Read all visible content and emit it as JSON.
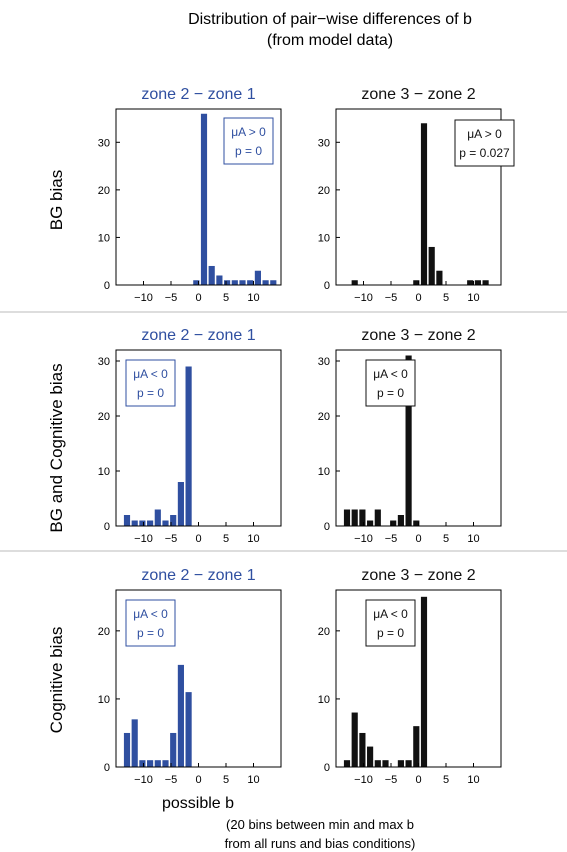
{
  "title_line1": "Distribution of pair−wise differences of b",
  "title_line2": "(from model data)",
  "xlabel": "possible b",
  "note_line1": "(20 bins between min and max b",
  "note_line2": "from all runs and bias conditions)",
  "colors": {
    "blue": "#2f4fa0",
    "black": "#111111",
    "separator": "#bbbbbb"
  },
  "chart_data": [
    {
      "type": "bar",
      "row": "BG bias",
      "title": "zone 2 − zone 1",
      "color": "blue",
      "x": [
        -13,
        -11.6,
        -10.2,
        -8.8,
        -7.4,
        -6,
        -4.6,
        -3.2,
        -1.8,
        -0.4,
        1,
        2.4,
        3.8,
        5.2,
        6.6,
        8,
        9.4,
        10.8,
        12.2,
        13.6
      ],
      "values": [
        0,
        0,
        0,
        0,
        0,
        0,
        0,
        0,
        0,
        1,
        36,
        4,
        2,
        1,
        1,
        1,
        1,
        3,
        1,
        1
      ],
      "xlim": [
        -15,
        15
      ],
      "ylim": [
        0,
        37
      ],
      "xticks": [
        -10,
        -5,
        0,
        5,
        10
      ],
      "xtick_labels": [
        "−10",
        "−5",
        "0",
        "5",
        "10"
      ],
      "yticks": [
        0,
        10,
        20,
        30
      ],
      "ytick_labels": [
        "0",
        "10",
        "20",
        "30"
      ],
      "stat_line1": "μA > 0",
      "stat_line2": "p = 0"
    },
    {
      "type": "bar",
      "row": "BG bias",
      "title": "zone 3 − zone 2",
      "color": "black",
      "x": [
        -13,
        -11.6,
        -10.2,
        -8.8,
        -7.4,
        -6,
        -4.6,
        -3.2,
        -1.8,
        -0.4,
        1,
        2.4,
        3.8,
        5.2,
        6.6,
        8,
        9.4,
        10.8,
        12.2,
        13.6
      ],
      "values": [
        0,
        1,
        0,
        0,
        0,
        0,
        0,
        0,
        0,
        1,
        34,
        8,
        3,
        0,
        0,
        0,
        1,
        1,
        1,
        0
      ],
      "xlim": [
        -15,
        15
      ],
      "ylim": [
        0,
        37
      ],
      "xticks": [
        -10,
        -5,
        0,
        5,
        10
      ],
      "xtick_labels": [
        "−10",
        "−5",
        "0",
        "5",
        "10"
      ],
      "yticks": [
        0,
        10,
        20,
        30
      ],
      "ytick_labels": [
        "0",
        "10",
        "20",
        "30"
      ],
      "stat_line1": "μA > 0",
      "stat_line2": "p = 0.027"
    },
    {
      "type": "bar",
      "row": "BG and Cognitive bias",
      "title": "zone 2 − zone 1",
      "color": "blue",
      "x": [
        -13,
        -11.6,
        -10.2,
        -8.8,
        -7.4,
        -6,
        -4.6,
        -3.2,
        -1.8,
        -0.4,
        1,
        2.4,
        3.8,
        5.2,
        6.6,
        8,
        9.4,
        10.8,
        12.2,
        13.6
      ],
      "values": [
        2,
        1,
        1,
        1,
        3,
        1,
        2,
        8,
        29,
        0,
        0,
        0,
        0,
        0,
        0,
        0,
        0,
        0,
        0,
        0
      ],
      "xlim": [
        -15,
        15
      ],
      "ylim": [
        0,
        32
      ],
      "xticks": [
        -10,
        -5,
        0,
        5,
        10
      ],
      "xtick_labels": [
        "−10",
        "−5",
        "0",
        "5",
        "10"
      ],
      "yticks": [
        0,
        10,
        20,
        30
      ],
      "ytick_labels": [
        "0",
        "10",
        "20",
        "30"
      ],
      "stat_line1": "μA < 0",
      "stat_line2": "p = 0"
    },
    {
      "type": "bar",
      "row": "BG and Cognitive bias",
      "title": "zone 3 − zone 2",
      "color": "black",
      "x": [
        -13,
        -11.6,
        -10.2,
        -8.8,
        -7.4,
        -6,
        -4.6,
        -3.2,
        -1.8,
        -0.4,
        1,
        2.4,
        3.8,
        5.2,
        6.6,
        8,
        9.4,
        10.8,
        12.2,
        13.6
      ],
      "values": [
        3,
        3,
        3,
        1,
        3,
        0,
        1,
        2,
        31,
        1,
        0,
        0,
        0,
        0,
        0,
        0,
        0,
        0,
        0,
        0
      ],
      "xlim": [
        -15,
        15
      ],
      "ylim": [
        0,
        32
      ],
      "xticks": [
        -10,
        -5,
        0,
        5,
        10
      ],
      "xtick_labels": [
        "−10",
        "−5",
        "0",
        "5",
        "10"
      ],
      "yticks": [
        0,
        10,
        20,
        30
      ],
      "ytick_labels": [
        "0",
        "10",
        "20",
        "30"
      ],
      "stat_line1": "μA < 0",
      "stat_line2": "p = 0"
    },
    {
      "type": "bar",
      "row": "Cognitive bias",
      "title": "zone 2 − zone 1",
      "color": "blue",
      "x": [
        -13,
        -11.6,
        -10.2,
        -8.8,
        -7.4,
        -6,
        -4.6,
        -3.2,
        -1.8,
        -0.4,
        1,
        2.4,
        3.8,
        5.2,
        6.6,
        8,
        9.4,
        10.8,
        12.2,
        13.6
      ],
      "values": [
        5,
        7,
        1,
        1,
        1,
        1,
        5,
        15,
        11,
        0,
        0,
        0,
        0,
        0,
        0,
        0,
        0,
        0,
        0,
        0
      ],
      "xlim": [
        -15,
        15
      ],
      "ylim": [
        0,
        26
      ],
      "xticks": [
        -10,
        -5,
        0,
        5,
        10
      ],
      "xtick_labels": [
        "−10",
        "−5",
        "0",
        "5",
        "10"
      ],
      "yticks": [
        0,
        10,
        20
      ],
      "ytick_labels": [
        "0",
        "10",
        "20"
      ],
      "stat_line1": "μA < 0",
      "stat_line2": "p = 0"
    },
    {
      "type": "bar",
      "row": "Cognitive bias",
      "title": "zone 3 − zone 2",
      "color": "black",
      "x": [
        -13,
        -11.6,
        -10.2,
        -8.8,
        -7.4,
        -6,
        -4.6,
        -3.2,
        -1.8,
        -0.4,
        1,
        2.4,
        3.8,
        5.2,
        6.6,
        8,
        9.4,
        10.8,
        12.2,
        13.6
      ],
      "values": [
        1,
        8,
        5,
        3,
        1,
        1,
        0,
        1,
        1,
        6,
        25,
        0,
        0,
        0,
        0,
        0,
        0,
        0,
        0,
        0
      ],
      "xlim": [
        -15,
        15
      ],
      "ylim": [
        0,
        26
      ],
      "xticks": [
        -10,
        -5,
        0,
        5,
        10
      ],
      "xtick_labels": [
        "−10",
        "−5",
        "0",
        "5",
        "10"
      ],
      "yticks": [
        0,
        10,
        20
      ],
      "ytick_labels": [
        "0",
        "10",
        "20"
      ],
      "stat_line1": "μA < 0",
      "stat_line2": "p = 0"
    }
  ]
}
